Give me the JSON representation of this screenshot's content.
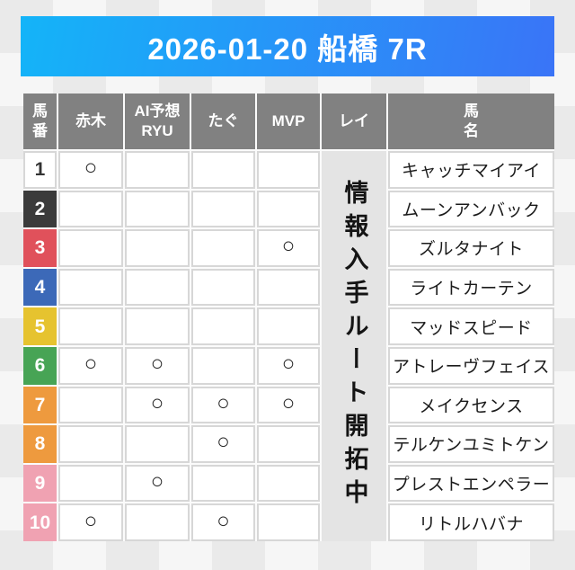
{
  "banner": {
    "title": "2026-01-20 船橋 7R",
    "gradient_from": "#14b4f8",
    "gradient_to": "#3a74f7"
  },
  "table": {
    "header_bg": "#818181",
    "cell_border_color": "#d7d7d7",
    "mark_symbol": "○",
    "columns": [
      {
        "id": "umaban",
        "label": "馬\n番"
      },
      {
        "id": "akagi",
        "label": "赤木"
      },
      {
        "id": "ai-yosou-ryu",
        "label": "AI予想\nRYU"
      },
      {
        "id": "tagu",
        "label": "たぐ"
      },
      {
        "id": "mvp",
        "label": "MVP"
      },
      {
        "id": "rei",
        "label": "レイ"
      },
      {
        "id": "bamei",
        "label": "馬\n名"
      }
    ],
    "notice": {
      "text": "情報入手ルート開拓中",
      "bg": "#e4e4e4"
    },
    "rows": [
      {
        "number": "1",
        "bg": "#ffffff",
        "fg": "#333333",
        "marks": [
          true,
          false,
          false,
          false
        ],
        "name": "キャッチマイアイ"
      },
      {
        "number": "2",
        "bg": "#3b3b3b",
        "fg": "#ffffff",
        "marks": [
          false,
          false,
          false,
          false
        ],
        "name": "ムーンアンバック"
      },
      {
        "number": "3",
        "bg": "#e0515b",
        "fg": "#ffffff",
        "marks": [
          false,
          false,
          false,
          true
        ],
        "name": "ズルタナイト"
      },
      {
        "number": "4",
        "bg": "#3c69b8",
        "fg": "#ffffff",
        "marks": [
          false,
          false,
          false,
          false
        ],
        "name": "ライトカーテン"
      },
      {
        "number": "5",
        "bg": "#e6c32f",
        "fg": "#ffffff",
        "marks": [
          false,
          false,
          false,
          false
        ],
        "name": "マッドスピード"
      },
      {
        "number": "6",
        "bg": "#47a455",
        "fg": "#ffffff",
        "marks": [
          true,
          true,
          false,
          true
        ],
        "name": "アトレーヴフェイス"
      },
      {
        "number": "7",
        "bg": "#ee9a3e",
        "fg": "#ffffff",
        "marks": [
          false,
          true,
          true,
          true
        ],
        "name": "メイクセンス"
      },
      {
        "number": "8",
        "bg": "#ee9a3e",
        "fg": "#ffffff",
        "marks": [
          false,
          false,
          true,
          false
        ],
        "name": "テルケンユミトケン"
      },
      {
        "number": "9",
        "bg": "#f0a2b2",
        "fg": "#ffffff",
        "marks": [
          false,
          true,
          false,
          false
        ],
        "name": "プレストエンペラー"
      },
      {
        "number": "10",
        "bg": "#f0a2b2",
        "fg": "#ffffff",
        "marks": [
          true,
          false,
          true,
          false
        ],
        "name": "リトルハバナ"
      }
    ]
  }
}
